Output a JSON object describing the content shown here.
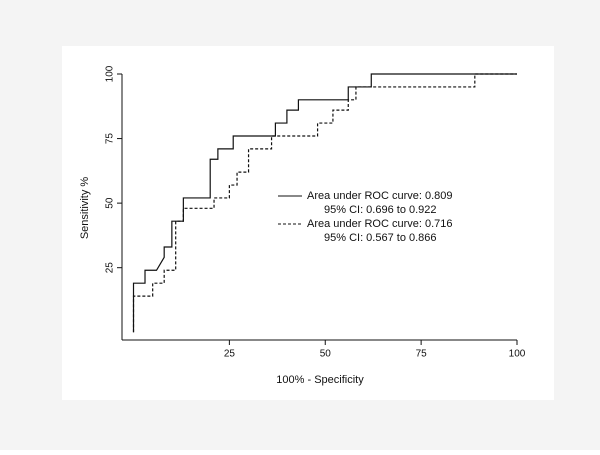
{
  "chart_data": {
    "type": "line",
    "xlabel": "100% - Specificity",
    "ylabel": "Sensitivity %",
    "xlim": [
      -3,
      100
    ],
    "ylim": [
      -3,
      100
    ],
    "xticks": [
      25,
      50,
      75,
      100
    ],
    "yticks": [
      25,
      50,
      75,
      100
    ],
    "series": [
      {
        "name": "Area under ROC curve: 0.809",
        "ci": "95% CI: 0.696 to 0.922",
        "color": "#111111",
        "dash": "solid",
        "x": [
          0,
          0,
          3,
          3,
          6,
          8,
          8,
          10,
          10,
          13,
          13,
          20,
          20,
          22,
          22,
          26,
          26,
          37,
          37,
          40,
          40,
          43,
          43,
          56,
          56,
          62,
          62,
          100
        ],
        "values": [
          0,
          19,
          19,
          24,
          24,
          29,
          33,
          33,
          43,
          43,
          52,
          52,
          67,
          67,
          71,
          71,
          76,
          76,
          81,
          81,
          86,
          86,
          90,
          90,
          95,
          95,
          100,
          100
        ]
      },
      {
        "name": "Area under ROC curve: 0.716",
        "ci": "95% CI: 0.567 to 0.866",
        "color": "#111111",
        "dash": "dashed",
        "x": [
          0,
          0,
          5,
          5,
          8,
          8,
          11,
          11,
          13,
          13,
          21,
          21,
          25,
          25,
          27,
          27,
          30,
          30,
          36,
          36,
          48,
          48,
          52,
          52,
          56,
          56,
          58,
          58,
          89,
          89,
          100
        ],
        "values": [
          0,
          14,
          14,
          19,
          19,
          24,
          24,
          43,
          43,
          48,
          48,
          52,
          52,
          57,
          57,
          62,
          62,
          71,
          71,
          76,
          76,
          81,
          81,
          86,
          86,
          90,
          90,
          95,
          95,
          100,
          100
        ]
      }
    ]
  }
}
